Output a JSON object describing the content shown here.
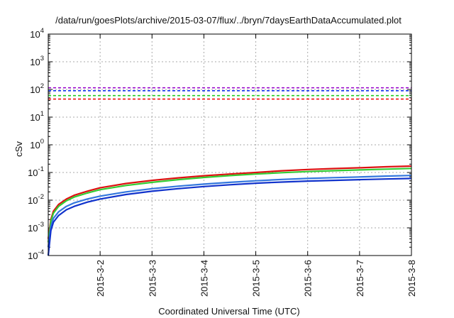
{
  "chart_data": {
    "type": "line",
    "title": "/data/run/goesPlots/archive/2015-03-07/flux/../bryn/7daysEarthDataAccumulated.plot",
    "xlabel": "Coordinated Universal Time (UTC)",
    "ylabel": "cSv",
    "x_tick_labels": [
      "2015-3-2",
      "2015-3-3",
      "2015-3-4",
      "2015-3-5",
      "2015-3-6",
      "2015-3-7",
      "2015-3-8"
    ],
    "x_ticks": [
      1,
      2,
      3,
      4,
      5,
      6,
      7
    ],
    "xlim": [
      0,
      7
    ],
    "y_scale": "log",
    "ylim": [
      0.0001,
      10000
    ],
    "y_ticks": [
      {
        "base": "10",
        "exp": "-4"
      },
      {
        "base": "10",
        "exp": "-3"
      },
      {
        "base": "10",
        "exp": "-2"
      },
      {
        "base": "10",
        "exp": "-1"
      },
      {
        "base": "10",
        "exp": "0"
      },
      {
        "base": "10",
        "exp": "1"
      },
      {
        "base": "10",
        "exp": "2"
      },
      {
        "base": "10",
        "exp": "3"
      },
      {
        "base": "10",
        "exp": "4"
      }
    ],
    "grid": true,
    "legend": "none",
    "thresholds": [
      {
        "y": 115,
        "color": "#9900cc",
        "style": "dashed"
      },
      {
        "y": 90,
        "color": "#1133ee",
        "style": "dashed"
      },
      {
        "y": 60,
        "color": "#22cc22",
        "style": "dashed"
      },
      {
        "y": 45,
        "color": "#ee1111",
        "style": "dashed"
      }
    ],
    "series": [
      {
        "color": "#dd1111",
        "x": [
          0,
          0.05,
          0.1,
          0.2,
          0.35,
          0.5,
          0.75,
          1.0,
          1.5,
          2.0,
          2.5,
          3.0,
          3.5,
          4.0,
          4.5,
          5.0,
          5.5,
          6.0,
          6.5,
          7.0
        ],
        "y": [
          0.0004,
          0.002,
          0.004,
          0.007,
          0.011,
          0.015,
          0.021,
          0.028,
          0.04,
          0.052,
          0.064,
          0.076,
          0.088,
          0.1,
          0.115,
          0.128,
          0.138,
          0.148,
          0.16,
          0.17
        ]
      },
      {
        "color": "#33cc33",
        "x": [
          0,
          0.05,
          0.1,
          0.2,
          0.35,
          0.5,
          0.75,
          1.0,
          1.5,
          2.0,
          2.5,
          3.0,
          3.5,
          4.0,
          4.5,
          5.0,
          5.5,
          6.0,
          6.5,
          7.0
        ],
        "y": [
          0.0003,
          0.0017,
          0.0034,
          0.006,
          0.0095,
          0.013,
          0.018,
          0.024,
          0.034,
          0.044,
          0.055,
          0.066,
          0.077,
          0.088,
          0.098,
          0.108,
          0.116,
          0.124,
          0.132,
          0.14
        ]
      },
      {
        "color": "#3377dd",
        "x": [
          0,
          0.05,
          0.1,
          0.2,
          0.35,
          0.5,
          0.75,
          1.0,
          1.5,
          2.0,
          2.5,
          3.0,
          3.5,
          4.0,
          4.5,
          5.0,
          5.5,
          6.0,
          6.5,
          7.0
        ],
        "y": [
          0.0002,
          0.0011,
          0.0022,
          0.0038,
          0.006,
          0.008,
          0.011,
          0.014,
          0.02,
          0.026,
          0.032,
          0.038,
          0.044,
          0.05,
          0.056,
          0.061,
          0.065,
          0.069,
          0.074,
          0.078
        ]
      },
      {
        "color": "#1133cc",
        "x": [
          0,
          0.05,
          0.1,
          0.2,
          0.35,
          0.5,
          0.75,
          1.0,
          1.5,
          2.0,
          2.5,
          3.0,
          3.5,
          4.0,
          4.5,
          5.0,
          5.5,
          6.0,
          6.5,
          7.0
        ],
        "y": [
          0.0001,
          0.0008,
          0.0016,
          0.0028,
          0.0045,
          0.006,
          0.0085,
          0.011,
          0.016,
          0.021,
          0.026,
          0.031,
          0.036,
          0.041,
          0.045,
          0.049,
          0.052,
          0.055,
          0.058,
          0.061
        ]
      }
    ]
  }
}
